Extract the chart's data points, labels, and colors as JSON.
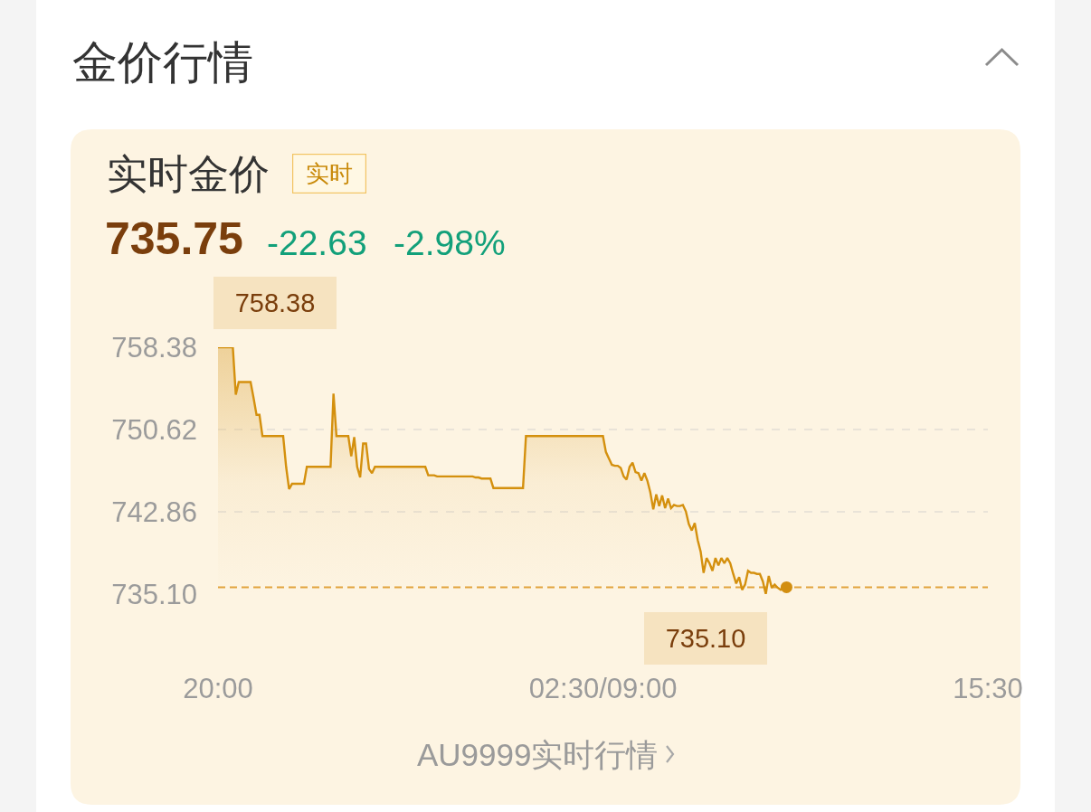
{
  "chart_data": {
    "type": "area",
    "title": "金价行情",
    "subtitle": "实时金价",
    "annotations": [
      "实时",
      "735.75",
      "-22.63",
      "-2.98%",
      "758.38",
      "735.10",
      "AU9999实时行情"
    ],
    "categories": [
      "20:00",
      null,
      null,
      null,
      null,
      null,
      null,
      null,
      null,
      null,
      null,
      null,
      null,
      null,
      null,
      null,
      null,
      null,
      null,
      null,
      null,
      null,
      null,
      null,
      null,
      null,
      null,
      null,
      null,
      null,
      null,
      null,
      null,
      null,
      null,
      null,
      null,
      null,
      null,
      null,
      null,
      null,
      null,
      null,
      null,
      null,
      null,
      null,
      null,
      null,
      null,
      null,
      null,
      null,
      null,
      null,
      null,
      null,
      null,
      null,
      null,
      null,
      null,
      null,
      null,
      null,
      null,
      null,
      null,
      null,
      null,
      null,
      null,
      null,
      null,
      null,
      null,
      null,
      null,
      null,
      null,
      null,
      null,
      null,
      null,
      null,
      null,
      null,
      null,
      null,
      null,
      null,
      null,
      null,
      null,
      null,
      null,
      null,
      null,
      null,
      null,
      null,
      null,
      null,
      null,
      null,
      null,
      null,
      null,
      null,
      null,
      null,
      null,
      null,
      null,
      null,
      null,
      null,
      null,
      null,
      null,
      null,
      null,
      null,
      null,
      null,
      null,
      null,
      null,
      null,
      "02:30/09:00",
      null,
      null,
      null,
      null,
      null,
      null,
      null,
      null,
      null,
      null,
      null,
      null,
      null,
      null,
      null,
      null,
      null,
      null,
      null,
      null,
      null,
      null,
      null,
      null,
      null,
      null,
      null,
      null,
      null,
      null,
      null,
      null,
      null,
      null,
      null,
      null,
      null,
      null,
      null,
      null,
      null,
      null,
      null,
      null,
      null,
      null,
      null,
      null,
      null,
      null,
      null,
      null,
      null,
      null,
      null,
      null,
      null,
      null,
      null,
      null,
      null,
      null,
      null,
      null,
      null,
      null,
      null,
      null,
      null,
      null,
      null,
      null,
      null,
      null,
      null,
      null,
      null,
      null,
      null,
      null,
      null,
      null,
      null,
      null,
      null,
      null,
      null,
      null,
      null,
      null,
      null,
      null,
      null,
      null,
      null,
      null,
      null,
      null,
      null,
      null,
      null,
      null,
      null,
      null,
      null,
      null,
      null,
      null,
      null,
      null,
      null,
      null,
      null,
      null,
      null,
      null,
      null,
      null,
      null,
      null,
      null,
      null,
      null,
      null,
      null,
      null,
      null,
      null,
      null,
      "15:30"
    ],
    "ylim": [
      735.1,
      758.38
    ],
    "yticks": [
      {
        "value": 735.1,
        "label": "735.10"
      },
      742.86,
      750.62,
      758.38
    ],
    "grid": "y",
    "ref_lines": [
      {
        "axis": "y",
        "value": 735.75,
        "color": "#e2a33c",
        "line_style": "dashed"
      }
    ],
    "series": [
      {
        "color": "#d4900e",
        "values": [
          758.38,
          758.38,
          758.38,
          758.38,
          758.38,
          758.38,
          753.9,
          755.1,
          755.1,
          755.1,
          755.1,
          755.1,
          753.6,
          752.0,
          752.0,
          750.0,
          750.0,
          750.0,
          750.0,
          750.0,
          750.0,
          750.0,
          750.0,
          747.1,
          745.0,
          745.5,
          745.5,
          745.5,
          745.5,
          745.5,
          747.1,
          747.1,
          747.1,
          747.1,
          747.1,
          747.1,
          747.1,
          747.1,
          747.1,
          754.0,
          750.0,
          750.0,
          750.0,
          750.0,
          750.0,
          748.1,
          749.9,
          747.1,
          746.1,
          749.3,
          749.3,
          746.9,
          746.5,
          747.1,
          747.1,
          747.1,
          747.1,
          747.1,
          747.1,
          747.1,
          747.1,
          747.1,
          747.1,
          747.1,
          747.1,
          747.1,
          747.1,
          747.1,
          747.1,
          747.1,
          747.1,
          746.3,
          746.3,
          746.3,
          746.2,
          746.2,
          746.2,
          746.2,
          746.2,
          746.2,
          746.2,
          746.2,
          746.2,
          746.2,
          746.2,
          746.2,
          746.2,
          746.1,
          746.1,
          746.0,
          746.0,
          746.0,
          746.0,
          745.1,
          745.1,
          745.1,
          745.1,
          745.1,
          745.1,
          745.1,
          745.1,
          745.1,
          745.1,
          745.1,
          750.0,
          750.0,
          750.0,
          750.0,
          750.0,
          750.0,
          750.0,
          750.0,
          750.0,
          750.0,
          750.0,
          750.0,
          750.0,
          750.0,
          750.0,
          750.0,
          750.0,
          750.0,
          750.0,
          750.0,
          750.0,
          750.0,
          750.0,
          750.0,
          750.0,
          750.0,
          750.0,
          748.5,
          747.9,
          747.3,
          747.2,
          747.2,
          747.0,
          746.2,
          745.9,
          747.1,
          747.5,
          746.6,
          746.5,
          745.8,
          746.5,
          745.8,
          744.7,
          743.1,
          744.5,
          743.4,
          744.4,
          743.2,
          744.1,
          743.2,
          743.5,
          743.4,
          743.4,
          743.5,
          742.9,
          741.7,
          741.1,
          741.8,
          740.2,
          739.1,
          737.1,
          738.5,
          738.0,
          737.3,
          738.5,
          737.8,
          738.5,
          738.0,
          738.5,
          738.0,
          737.0,
          736.1,
          736.7,
          735.5,
          736.0,
          737.3,
          737.1,
          737.1,
          737.0,
          737.0,
          736.3,
          735.1,
          736.8,
          735.7,
          736.0,
          735.7,
          735.5,
          735.75,
          735.75,
          null,
          null,
          null,
          null,
          null,
          null,
          null,
          null,
          null,
          null,
          null,
          null,
          null,
          null,
          null,
          null,
          null,
          null,
          null,
          null,
          null,
          null,
          null,
          null,
          null,
          null,
          null,
          null,
          null,
          null,
          null,
          null,
          null,
          null,
          null,
          null,
          null,
          null,
          null,
          null,
          null,
          null,
          null,
          null,
          null,
          null,
          null,
          null,
          null,
          null,
          null,
          null,
          null,
          null,
          null,
          null,
          null,
          null,
          null,
          null,
          null,
          null,
          null,
          null,
          null,
          null,
          null,
          null
        ]
      },
      {
        "type": "scatter",
        "marker": "circle",
        "color": "#d28e10",
        "values": [
          null,
          null,
          null,
          null,
          null,
          null,
          null,
          null,
          null,
          null,
          null,
          null,
          null,
          null,
          null,
          null,
          null,
          null,
          null,
          null,
          null,
          null,
          null,
          null,
          null,
          null,
          null,
          null,
          null,
          null,
          null,
          null,
          null,
          null,
          null,
          null,
          null,
          null,
          null,
          null,
          null,
          null,
          null,
          null,
          null,
          null,
          null,
          null,
          null,
          null,
          null,
          null,
          null,
          null,
          null,
          null,
          null,
          null,
          null,
          null,
          null,
          null,
          null,
          null,
          null,
          null,
          null,
          null,
          null,
          null,
          null,
          null,
          null,
          null,
          null,
          null,
          null,
          null,
          null,
          null,
          null,
          null,
          null,
          null,
          null,
          null,
          null,
          null,
          null,
          null,
          null,
          null,
          null,
          null,
          null,
          null,
          null,
          null,
          null,
          null,
          null,
          null,
          null,
          null,
          null,
          null,
          null,
          null,
          null,
          null,
          null,
          null,
          null,
          null,
          null,
          null,
          null,
          null,
          null,
          null,
          null,
          null,
          null,
          null,
          null,
          null,
          null,
          null,
          null,
          null,
          null,
          null,
          null,
          null,
          null,
          null,
          null,
          null,
          null,
          null,
          null,
          null,
          null,
          null,
          null,
          null,
          null,
          null,
          null,
          null,
          null,
          null,
          null,
          null,
          null,
          null,
          null,
          null,
          null,
          null,
          null,
          null,
          null,
          null,
          null,
          null,
          null,
          null,
          null,
          null,
          null,
          null,
          null,
          null,
          null,
          null,
          null,
          null,
          null,
          null,
          null,
          null,
          null,
          null,
          null,
          null,
          null,
          null,
          null,
          null,
          null,
          null,
          735.75,
          null,
          null,
          null,
          null,
          null,
          null,
          null,
          null,
          null,
          null,
          null,
          null,
          null,
          null,
          null,
          null,
          null,
          null,
          null,
          null,
          null,
          null,
          null,
          null,
          null,
          null,
          null,
          null,
          null,
          null,
          null,
          null,
          null,
          null,
          null,
          null,
          null,
          null,
          null,
          null,
          null,
          null,
          null,
          null,
          null,
          null,
          null,
          null,
          null,
          null,
          null,
          null,
          null,
          null,
          null,
          null,
          null,
          null,
          null,
          null,
          null,
          null,
          null,
          null,
          null,
          null,
          null,
          null
        ]
      }
    ]
  }
}
